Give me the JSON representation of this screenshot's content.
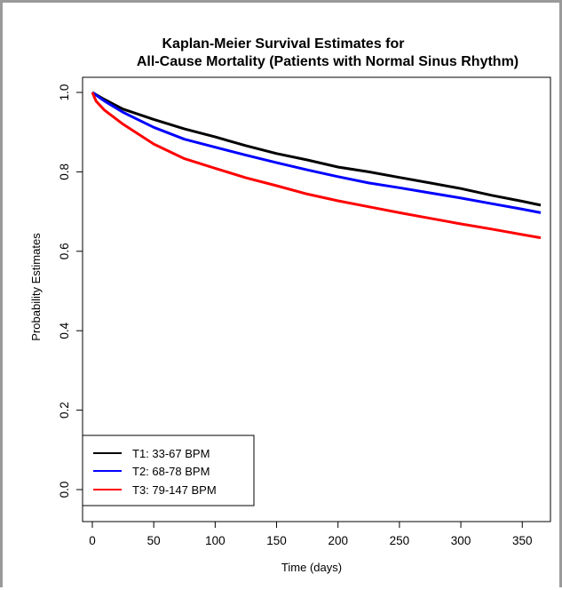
{
  "chart_data": {
    "type": "line",
    "title": [
      "Kaplan-Meier Survival Estimates for",
      "All-Cause Mortality (Patients with Normal Sinus Rhythm)"
    ],
    "xlabel": "Time (days)",
    "ylabel": "Probability Estimates",
    "xlim": [
      0,
      365
    ],
    "ylim": [
      0,
      1
    ],
    "x_ticks": [
      0,
      50,
      100,
      150,
      200,
      250,
      300,
      350
    ],
    "y_ticks": [
      0.0,
      0.2,
      0.4,
      0.6,
      0.8,
      1.0
    ],
    "y_tick_labels": [
      "0.0",
      "0.2",
      "0.4",
      "0.6",
      "0.8",
      "1.0"
    ],
    "grid": false,
    "legend_position": "bottom-left",
    "series": [
      {
        "name": "T1: 33-67 BPM",
        "color": "#000000",
        "x": [
          0,
          10,
          25,
          50,
          75,
          100,
          125,
          150,
          175,
          200,
          225,
          250,
          275,
          300,
          325,
          350,
          365
        ],
        "y": [
          1.0,
          0.982,
          0.958,
          0.932,
          0.908,
          0.888,
          0.866,
          0.846,
          0.83,
          0.812,
          0.8,
          0.786,
          0.772,
          0.758,
          0.741,
          0.726,
          0.716
        ]
      },
      {
        "name": "T2: 68-78 BPM",
        "color": "#0000ff",
        "x": [
          0,
          10,
          25,
          50,
          75,
          100,
          125,
          150,
          175,
          200,
          225,
          250,
          275,
          300,
          325,
          350,
          365
        ],
        "y": [
          1.0,
          0.978,
          0.95,
          0.912,
          0.882,
          0.862,
          0.842,
          0.823,
          0.805,
          0.788,
          0.772,
          0.76,
          0.747,
          0.734,
          0.72,
          0.706,
          0.697
        ]
      },
      {
        "name": "T3: 79-147 BPM",
        "color": "#ff0000",
        "x": [
          0,
          3,
          10,
          25,
          50,
          75,
          100,
          125,
          150,
          175,
          200,
          225,
          250,
          275,
          300,
          325,
          350,
          365
        ],
        "y": [
          1.0,
          0.978,
          0.955,
          0.92,
          0.87,
          0.833,
          0.809,
          0.785,
          0.765,
          0.744,
          0.727,
          0.712,
          0.697,
          0.683,
          0.669,
          0.656,
          0.642,
          0.634
        ]
      }
    ]
  }
}
